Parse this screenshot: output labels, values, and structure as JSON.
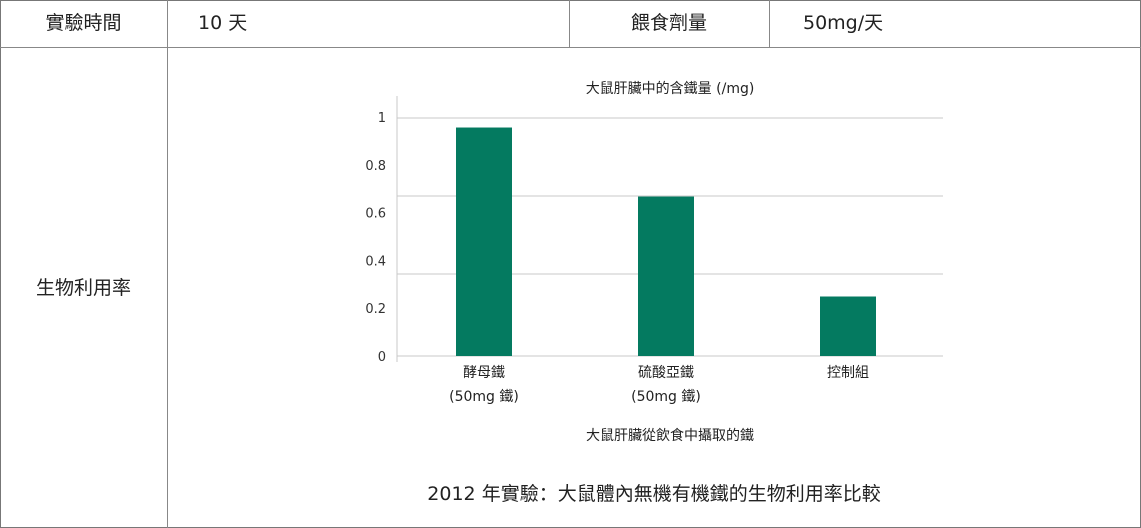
{
  "table": {
    "duration_label": "實驗時間",
    "duration_value": "10 天",
    "dose_label": "餵食劑量",
    "dose_value": "50mg/天",
    "row_label": "生物利用率"
  },
  "caption": "2012 年實驗：大鼠體內無機有機鐵的生物利用率比較",
  "chart_data": {
    "type": "bar",
    "title": "大鼠肝臟中的含鐵量 (/mg)",
    "xlabel": "大鼠肝臟從飲食中攝取的鐵",
    "ylabel": "",
    "categories": [
      [
        "酵母鐵",
        "(50mg 鐵)"
      ],
      [
        "硫酸亞鐵",
        "(50mg 鐵)"
      ],
      [
        "控制組",
        ""
      ]
    ],
    "values": [
      0.96,
      0.67,
      0.25
    ],
    "yticks": [
      "1",
      "0.8",
      "0.6",
      "0.4",
      "0.2",
      "0"
    ],
    "ylim": [
      0,
      1
    ],
    "grid": true,
    "color": "#047a60"
  }
}
